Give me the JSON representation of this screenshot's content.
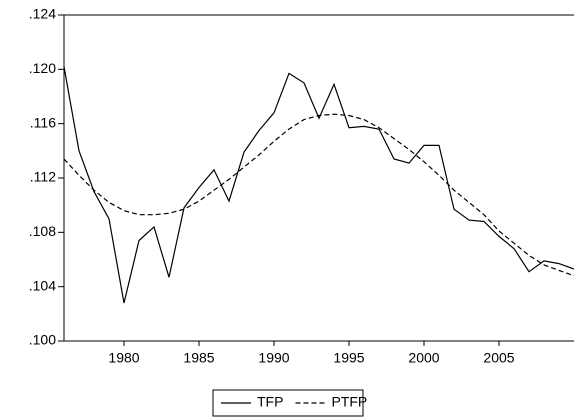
{
  "chart_data": {
    "type": "line",
    "x": [
      1976,
      1977,
      1978,
      1979,
      1980,
      1981,
      1982,
      1983,
      1984,
      1985,
      1986,
      1987,
      1988,
      1989,
      1990,
      1991,
      1992,
      1993,
      1994,
      1995,
      1996,
      1997,
      1998,
      1999,
      2000,
      2001,
      2002,
      2003,
      2004,
      2005,
      2006,
      2007,
      2008,
      2009,
      2010
    ],
    "series": [
      {
        "name": "TFP",
        "color": "#000000",
        "dash": false,
        "values": [
          0.1202,
          0.114,
          0.111,
          0.109,
          0.1028,
          0.1074,
          0.1084,
          0.1047,
          0.1098,
          0.1113,
          0.1126,
          0.1103,
          0.1139,
          0.1155,
          0.1168,
          0.1197,
          0.119,
          0.1164,
          0.1189,
          0.1157,
          0.1158,
          0.1156,
          0.1134,
          0.1131,
          0.1144,
          0.1144,
          0.1097,
          0.1089,
          0.1088,
          0.1077,
          0.1068,
          0.1051,
          0.1059,
          0.1057,
          0.1053
        ]
      },
      {
        "name": "PTFP",
        "color": "#000000",
        "dash": true,
        "values": [
          0.1134,
          0.1122,
          0.1111,
          0.1102,
          0.1096,
          0.1093,
          0.1093,
          0.1094,
          0.1097,
          0.1103,
          0.1111,
          0.1119,
          0.1128,
          0.1137,
          0.1147,
          0.1156,
          0.1163,
          0.1166,
          0.1167,
          0.1166,
          0.1163,
          0.1157,
          0.1149,
          0.1141,
          0.1132,
          0.1122,
          0.1111,
          0.1102,
          0.1093,
          0.1081,
          0.1072,
          0.1063,
          0.1056,
          0.1052,
          0.1048
        ]
      }
    ],
    "xlim": [
      1976,
      2010
    ],
    "xticks": [
      1980,
      1985,
      1990,
      1995,
      2000,
      2005
    ],
    "ylim": [
      0.1,
      0.124
    ],
    "yticks": [
      {
        "value": 0.1,
        "label": ".100"
      },
      {
        "value": 0.104,
        "label": ".104"
      },
      {
        "value": 0.108,
        "label": ".108"
      },
      {
        "value": 0.112,
        "label": ".112"
      },
      {
        "value": 0.116,
        "label": ".116"
      },
      {
        "value": 0.12,
        "label": ".120"
      },
      {
        "value": 0.124,
        "label": ".124"
      }
    ],
    "legend": "bottom"
  }
}
